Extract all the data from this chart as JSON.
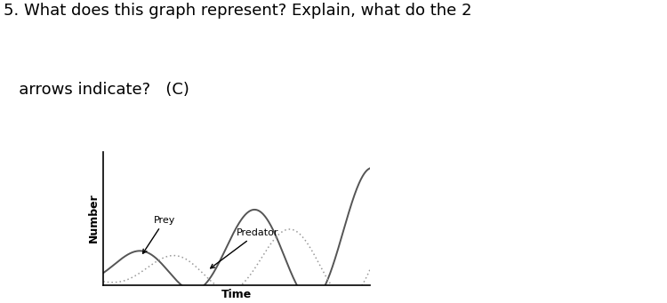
{
  "title_line1": "5. What does this graph represent? Explain, what do the 2",
  "title_line2": "   arrows indicate?   (C)",
  "xlabel": "Time",
  "ylabel": "Number",
  "prey_label": "Prey",
  "predator_label": "Predator",
  "background_color": "#ffffff",
  "prey_color": "#555555",
  "predator_color": "#999999",
  "title_fontsize": 13,
  "axis_label_fontsize": 9,
  "annotation_fontsize": 8,
  "fig_width": 7.5,
  "fig_height": 3.41,
  "dpi": 100
}
